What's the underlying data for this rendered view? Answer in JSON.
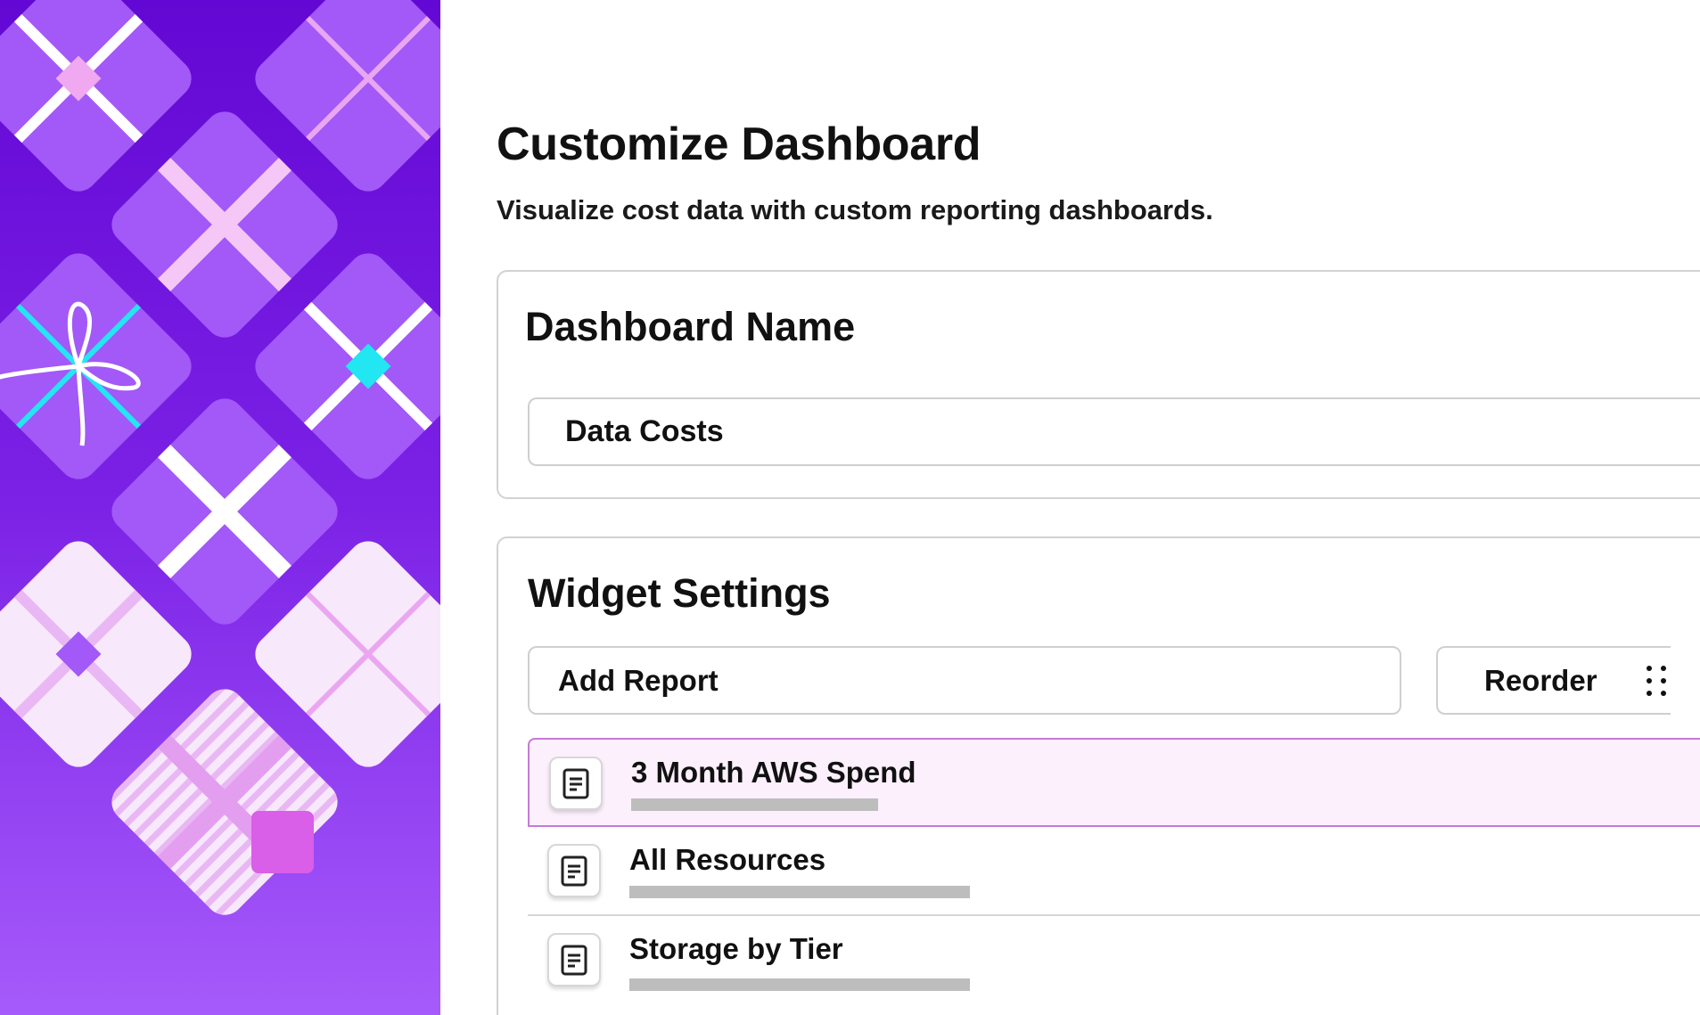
{
  "header": {
    "title": "Customize Dashboard",
    "subtitle": "Visualize cost data with custom reporting dashboards."
  },
  "dashboard_name": {
    "heading": "Dashboard Name",
    "value": "Data Costs"
  },
  "widget_settings": {
    "heading": "Widget Settings",
    "add_report_label": "Add Report",
    "reorder_label": "Reorder",
    "reorder_icon": "drag-handle-icon",
    "reports": [
      {
        "title": "3 Month AWS Spend",
        "icon": "document-icon",
        "selected": true
      },
      {
        "title": "All Resources",
        "icon": "document-icon",
        "selected": false
      },
      {
        "title": "Storage by Tier",
        "icon": "document-icon",
        "selected": false
      }
    ]
  },
  "colors": {
    "art_background": "#6a0fd6",
    "gift_purple": "#a259f7",
    "gift_pale": "#f7e8fc",
    "selected_row_bg": "#fcf0fc",
    "selected_row_border": "#c57bd6",
    "accent_cyan": "#22e6f2"
  }
}
